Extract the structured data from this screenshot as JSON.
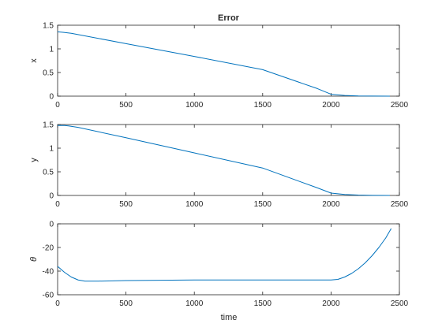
{
  "figure": {
    "xlabel": "time"
  },
  "chart_data": [
    {
      "type": "line",
      "title": "Error",
      "ylabel": "x",
      "xlim": [
        0,
        2500
      ],
      "ylim": [
        0,
        1.5
      ],
      "xticks": [
        "0",
        "500",
        "1000",
        "1500",
        "2000",
        "2500"
      ],
      "yticks": [
        "0",
        "0.5",
        "1",
        "1.5"
      ],
      "series_color": "#0072BD",
      "series": [
        {
          "x": [
            0,
            40,
            100,
            500,
            1000,
            1500,
            1900,
            2000,
            2100,
            2200,
            2300,
            2430
          ],
          "values": [
            1.36,
            1.35,
            1.33,
            1.11,
            0.84,
            0.56,
            0.16,
            0.04,
            0.015,
            0.005,
            0.002,
            0.001
          ]
        }
      ]
    },
    {
      "type": "line",
      "title": "",
      "ylabel": "y",
      "xlim": [
        0,
        2500
      ],
      "ylim": [
        0,
        1.5
      ],
      "xticks": [
        "0",
        "500",
        "1000",
        "1500",
        "2000",
        "2500"
      ],
      "yticks": [
        "0",
        "0.5",
        "1",
        "1.5"
      ],
      "series_color": "#0072BD",
      "series": [
        {
          "x": [
            0,
            50,
            80,
            150,
            500,
            1000,
            1500,
            1900,
            2000,
            2100,
            2200,
            2300,
            2430
          ],
          "values": [
            1.48,
            1.48,
            1.47,
            1.44,
            1.22,
            0.9,
            0.58,
            0.16,
            0.05,
            0.02,
            0.008,
            0.003,
            0.001
          ]
        }
      ]
    },
    {
      "type": "line",
      "title": "",
      "ylabel": "θ",
      "xlim": [
        0,
        2500
      ],
      "ylim": [
        -60,
        0
      ],
      "xticks": [
        "0",
        "500",
        "1000",
        "1500",
        "2000",
        "2500"
      ],
      "yticks": [
        "-60",
        "-40",
        "-20",
        "0"
      ],
      "series_color": "#0072BD",
      "series": [
        {
          "x": [
            0,
            50,
            100,
            150,
            200,
            300,
            500,
            1000,
            1500,
            2000,
            2050,
            2100,
            2150,
            2200,
            2250,
            2300,
            2350,
            2400,
            2440
          ],
          "values": [
            -36,
            -41,
            -45,
            -47.5,
            -48.5,
            -48.5,
            -48,
            -47.5,
            -47.5,
            -47.5,
            -47,
            -45,
            -42,
            -38,
            -33,
            -27,
            -20,
            -12,
            -4
          ]
        }
      ]
    }
  ]
}
